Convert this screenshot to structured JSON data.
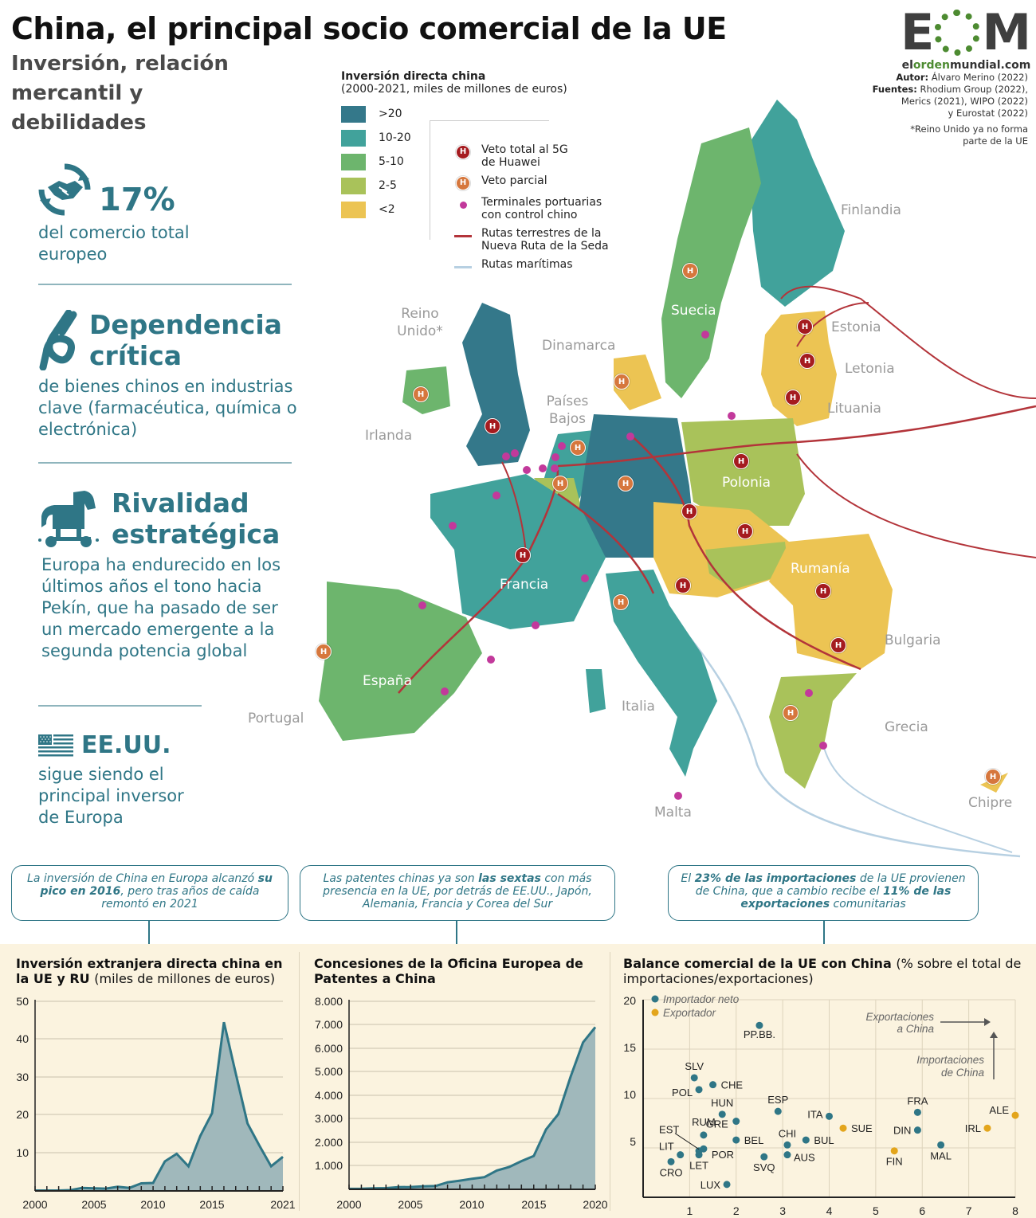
{
  "header": {
    "title": "China, el principal socio comercial de la UE",
    "subtitle": "Inversión, relación mercantil y debilidades"
  },
  "logo": {
    "mark_left": "E",
    "mark_right": "M",
    "url_pre": "el",
    "url_mid1": "orden",
    "url_post": "mundial.com"
  },
  "credits": {
    "author_label": "Autor:",
    "author": "Álvaro Merino (2022)",
    "sources_label": "Fuentes:",
    "sources_1": "Rhodium Group (2022),",
    "sources_2": "Merics (2021), WIPO (2022)",
    "sources_3": "y Eurostat (2022)",
    "note_1": "*Reino Unido ya no forma",
    "note_2": "parte de la UE"
  },
  "kpis": [
    {
      "icon": "handshake-icon",
      "headline": "17%",
      "text": "del comercio total europeo"
    },
    {
      "icon": "knot-icon",
      "headline_1": "Dependencia",
      "headline_2": "crítica",
      "text": "de bienes chinos en industrias clave (farmacéutica, química o electrónica)"
    },
    {
      "icon": "trojan-horse-icon",
      "headline_1": "Rivalidad",
      "headline_2": "estratégica",
      "text": "Europa ha endurecido en los últimos años el tono hacia Pekín, que ha pasado de ser un mercado emergente a la segunda potencia global"
    },
    {
      "icon": "us-flag-icon",
      "headline": "EE.UU.",
      "text": "sigue siendo el principal inversor de Europa"
    }
  ],
  "legend": {
    "title": "Inversión directa china",
    "subtitle": "(2000-2021, miles de millones de euros)",
    "bins": [
      {
        "label": ">20",
        "color": "#34788a"
      },
      {
        "label": "10-20",
        "color": "#41a29b"
      },
      {
        "label": "5-10",
        "color": "#6db56d"
      },
      {
        "label": "2-5",
        "color": "#a9c25a"
      },
      {
        "label": "<2",
        "color": "#ecc453"
      }
    ],
    "symbols": [
      {
        "type": "huawei-total-veto",
        "label_1": "Veto total al 5G",
        "label_2": "de Huawei",
        "color": "#a51b1f"
      },
      {
        "type": "huawei-partial-veto",
        "label_1": "Veto parcial",
        "label_2": "",
        "color": "#d6773d"
      },
      {
        "type": "chinese-port",
        "label_1": "Terminales portuarias",
        "label_2": "con control chino",
        "color": "#c2399b"
      },
      {
        "type": "land-route",
        "label_1": "Rutas terrestres de la",
        "label_2": "Nueva Ruta de la Seda",
        "color": "#b3343a"
      },
      {
        "type": "sea-route",
        "label_1": "Rutas marítimas",
        "label_2": "",
        "color": "#b7d0e2"
      }
    ],
    "badge_letter": "H"
  },
  "map": {
    "countries": [
      {
        "name": "Finlandia",
        "bin": "10-20",
        "inside": false
      },
      {
        "name": "Suecia",
        "bin": "5-10",
        "inside": true,
        "veto": "partial",
        "port": true
      },
      {
        "name": "Estonia",
        "bin": "<2",
        "inside": false,
        "veto": "total"
      },
      {
        "name": "Letonia",
        "bin": "<2",
        "inside": false,
        "veto": "total"
      },
      {
        "name": "Lituania",
        "bin": "<2",
        "inside": false,
        "veto": "total"
      },
      {
        "name": "Reino Unido*",
        "bin": ">20",
        "inside": false,
        "veto": "total",
        "port": true
      },
      {
        "name": "Irlanda",
        "bin": "5-10",
        "inside": false,
        "veto": "partial"
      },
      {
        "name": "Dinamarca",
        "bin": "<2",
        "inside": false,
        "veto": "partial"
      },
      {
        "name": "Países Bajos",
        "bin": "10-20",
        "inside": false,
        "veto": "partial",
        "port": true
      },
      {
        "name": "Polonia",
        "bin": "2-5",
        "inside": true,
        "veto": "total",
        "port": true
      },
      {
        "name": "Francia",
        "bin": "10-20",
        "inside": true,
        "veto": "total",
        "port": true
      },
      {
        "name": "España",
        "bin": "5-10",
        "inside": true,
        "port": true
      },
      {
        "name": "Portugal",
        "bin": "5-10",
        "inside": false,
        "veto": "partial"
      },
      {
        "name": "Italia",
        "bin": "10-20",
        "inside": false,
        "veto": "partial",
        "port": true
      },
      {
        "name": "Malta",
        "bin": "<2",
        "inside": false,
        "port": true
      },
      {
        "name": "Rumanía",
        "bin": "<2",
        "inside": true,
        "veto": "total"
      },
      {
        "name": "Bulgaria",
        "bin": "<2",
        "inside": false,
        "veto": "total"
      },
      {
        "name": "Grecia",
        "bin": "2-5",
        "inside": false,
        "veto": "partial",
        "port": true
      },
      {
        "name": "Chipre",
        "bin": "<2",
        "inside": false,
        "veto": "partial"
      }
    ]
  },
  "callouts": [
    {
      "pre": "La inversión de China en Europa alcanzó ",
      "bold": "su pico en 2016",
      "post": ", pero tras años de caída remontó en 2021"
    },
    {
      "pre": "Las patentes chinas ya son ",
      "bold": "las sextas",
      "post": " con más presencia en la UE, por detrás de EE.UU., Japón, Alemania, Francia y Corea del Sur"
    },
    {
      "pre": "El ",
      "bold": "23% de las importaciones",
      "mid": " de la UE provienen de China, que a cambio recibe el ",
      "bold2": "11% de las exportaciones",
      "post": " comunitarias"
    }
  ],
  "chart_data": [
    {
      "type": "area",
      "title": "Inversión extranjera directa china en la UE y RU",
      "title_unit": "(miles de millones de euros)",
      "xlabel": "",
      "ylabel": "",
      "x": [
        2000,
        2001,
        2002,
        2003,
        2004,
        2005,
        2006,
        2007,
        2008,
        2009,
        2010,
        2011,
        2012,
        2013,
        2014,
        2015,
        2016,
        2017,
        2018,
        2019,
        2020,
        2021
      ],
      "values": [
        0.1,
        0.1,
        0.1,
        0.2,
        0.8,
        0.7,
        0.6,
        1.1,
        0.8,
        2.0,
        2.1,
        7.8,
        9.8,
        6.5,
        14.5,
        20.5,
        44.5,
        31.0,
        17.8,
        12.0,
        6.5,
        9.0
      ],
      "ylim": [
        0,
        50
      ],
      "yticks": [
        10,
        20,
        30,
        40,
        50
      ],
      "xticks": [
        "2000",
        "2005",
        "2010",
        "2015",
        "2021"
      ],
      "grid": true,
      "color": "#2f7686",
      "fill": "#a0b8bb"
    },
    {
      "type": "area",
      "title": "Concesiones de la Oficina Europea de Patentes a China",
      "xlabel": "",
      "ylabel": "",
      "x": [
        2000,
        2001,
        2002,
        2003,
        2004,
        2005,
        2006,
        2007,
        2008,
        2009,
        2010,
        2011,
        2012,
        2013,
        2014,
        2015,
        2016,
        2017,
        2018,
        2019,
        2020
      ],
      "values": [
        20,
        25,
        40,
        50,
        90,
        100,
        130,
        140,
        300,
        370,
        450,
        520,
        800,
        950,
        1200,
        1420,
        2550,
        3200,
        4800,
        6250,
        6900
      ],
      "ylim": [
        0,
        8000
      ],
      "yticks": [
        "1.000",
        "2.000",
        "3.000",
        "4.000",
        "5.000",
        "6.000",
        "7.000",
        "8.000"
      ],
      "xticks": [
        "2000",
        "2005",
        "2010",
        "2015",
        "2020"
      ],
      "grid": true,
      "color": "#2f7686",
      "fill": "#a0b8bb"
    },
    {
      "type": "scatter",
      "title": "Balance comercial de la UE con China",
      "title_unit": "(% sobre el total de importaciones/exportaciones)",
      "xlabel": "Exportaciones a China",
      "ylabel": "Importaciones de China",
      "xlim": [
        0,
        8
      ],
      "ylim": [
        0,
        20
      ],
      "xticks": [
        1,
        2,
        3,
        4,
        5,
        6,
        7,
        8
      ],
      "yticks": [
        5,
        10,
        15,
        20
      ],
      "grid": true,
      "legend": [
        {
          "label": "Importador neto",
          "color": "#2f7686"
        },
        {
          "label": "Exportador",
          "color": "#e3a51c"
        }
      ],
      "annotation_x": "Exportaciones a China",
      "annotation_y": "Importaciones de China",
      "points": [
        {
          "label": "PP.BB.",
          "x": 2.5,
          "y": 17.4,
          "group": "Importador neto"
        },
        {
          "label": "SLV",
          "x": 1.1,
          "y": 12.1,
          "group": "Importador neto"
        },
        {
          "label": "CHE",
          "x": 1.5,
          "y": 11.4,
          "group": "Importador neto"
        },
        {
          "label": "POL",
          "x": 1.2,
          "y": 10.9,
          "group": "Importador neto"
        },
        {
          "label": "HUN",
          "x": 1.7,
          "y": 8.4,
          "group": "Importador neto"
        },
        {
          "label": "GRE",
          "x": 2.0,
          "y": 7.7,
          "group": "Importador neto"
        },
        {
          "label": "ESP",
          "x": 2.9,
          "y": 8.7,
          "group": "Importador neto"
        },
        {
          "label": "ITA",
          "x": 4.0,
          "y": 8.2,
          "group": "Importador neto"
        },
        {
          "label": "RUM",
          "x": 1.3,
          "y": 6.3,
          "group": "Importador neto"
        },
        {
          "label": "BEL",
          "x": 2.0,
          "y": 5.8,
          "group": "Importador neto"
        },
        {
          "label": "CHI",
          "x": 3.1,
          "y": 5.3,
          "group": "Importador neto"
        },
        {
          "label": "BUL",
          "x": 3.5,
          "y": 5.8,
          "group": "Importador neto"
        },
        {
          "label": "EST",
          "x": 1.2,
          "y": 4.7,
          "group": "Importador neto"
        },
        {
          "label": "POR",
          "x": 1.3,
          "y": 4.9,
          "group": "Importador neto"
        },
        {
          "label": "LET",
          "x": 1.2,
          "y": 4.3,
          "group": "Importador neto"
        },
        {
          "label": "LIT",
          "x": 0.8,
          "y": 4.3,
          "group": "Importador neto"
        },
        {
          "label": "CRO",
          "x": 0.6,
          "y": 3.6,
          "group": "Importador neto"
        },
        {
          "label": "AUS",
          "x": 3.1,
          "y": 4.3,
          "group": "Importador neto"
        },
        {
          "label": "SVQ",
          "x": 2.6,
          "y": 4.1,
          "group": "Importador neto"
        },
        {
          "label": "LUX",
          "x": 1.8,
          "y": 1.3,
          "group": "Importador neto"
        },
        {
          "label": "FRA",
          "x": 5.9,
          "y": 8.6,
          "group": "Importador neto"
        },
        {
          "label": "DIN",
          "x": 5.9,
          "y": 6.8,
          "group": "Importador neto"
        },
        {
          "label": "MAL",
          "x": 6.4,
          "y": 5.3,
          "group": "Importador neto"
        },
        {
          "label": "SUE",
          "x": 4.3,
          "y": 7.0,
          "group": "Exportador"
        },
        {
          "label": "FIN",
          "x": 5.4,
          "y": 4.7,
          "group": "Exportador"
        },
        {
          "label": "IRL",
          "x": 7.4,
          "y": 7.0,
          "group": "Exportador"
        },
        {
          "label": "ALE",
          "x": 8.0,
          "y": 8.3,
          "group": "Exportador"
        }
      ]
    }
  ]
}
